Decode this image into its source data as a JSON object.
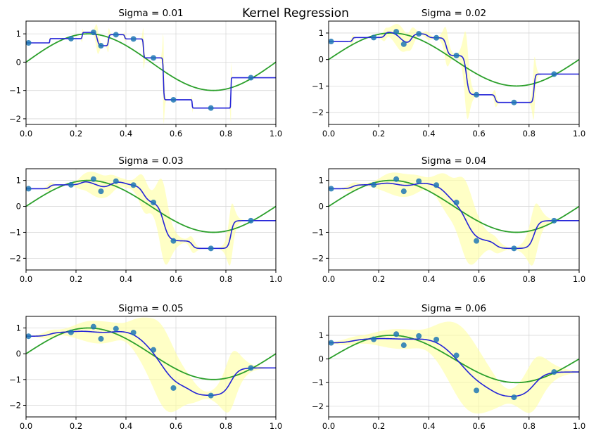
{
  "figure": {
    "suptitle": "Kernel Regression",
    "colors": {
      "true_curve": "#2ca02c",
      "fit_curve": "#2323d8",
      "band": "#ffffa0",
      "points": "#1f77b4"
    },
    "x_ticks": [
      "0.0",
      "0.2",
      "0.4",
      "0.6",
      "0.8",
      "1.0"
    ],
    "y_ticks": [
      "1",
      "0",
      "−1",
      "−2"
    ]
  },
  "chart_data": [
    {
      "type": "line",
      "title": "Sigma = 0.01",
      "sigma": 0.01,
      "xlim": [
        0,
        1
      ],
      "ylim": [
        -2.2,
        1.45
      ],
      "grid": true,
      "points": {
        "x": [
          0.01,
          0.18,
          0.27,
          0.3,
          0.36,
          0.43,
          0.51,
          0.59,
          0.74,
          0.9
        ],
        "y": [
          0.68,
          0.83,
          1.05,
          0.58,
          0.97,
          0.82,
          0.15,
          -1.33,
          -1.62,
          -0.55
        ]
      }
    },
    {
      "type": "line",
      "title": "Sigma = 0.02",
      "sigma": 0.02,
      "xlim": [
        0,
        1
      ],
      "ylim": [
        -2.45,
        1.45
      ],
      "grid": true,
      "points": {
        "x": [
          0.01,
          0.18,
          0.27,
          0.3,
          0.36,
          0.43,
          0.51,
          0.59,
          0.74,
          0.9
        ],
        "y": [
          0.68,
          0.83,
          1.05,
          0.58,
          0.97,
          0.82,
          0.15,
          -1.33,
          -1.62,
          -0.55
        ]
      }
    },
    {
      "type": "line",
      "title": "Sigma = 0.03",
      "sigma": 0.03,
      "xlim": [
        0,
        1
      ],
      "ylim": [
        -2.45,
        1.45
      ],
      "grid": true,
      "points": {
        "x": [
          0.01,
          0.18,
          0.27,
          0.3,
          0.36,
          0.43,
          0.51,
          0.59,
          0.74,
          0.9
        ],
        "y": [
          0.68,
          0.83,
          1.05,
          0.58,
          0.97,
          0.82,
          0.15,
          -1.33,
          -1.62,
          -0.55
        ]
      }
    },
    {
      "type": "line",
      "title": "Sigma = 0.04",
      "sigma": 0.04,
      "xlim": [
        0,
        1
      ],
      "ylim": [
        -2.45,
        1.45
      ],
      "grid": true,
      "points": {
        "x": [
          0.01,
          0.18,
          0.27,
          0.3,
          0.36,
          0.43,
          0.51,
          0.59,
          0.74,
          0.9
        ],
        "y": [
          0.68,
          0.83,
          1.05,
          0.58,
          0.97,
          0.82,
          0.15,
          -1.33,
          -1.62,
          -0.55
        ]
      }
    },
    {
      "type": "line",
      "title": "Sigma = 0.05",
      "sigma": 0.05,
      "xlim": [
        0,
        1
      ],
      "ylim": [
        -2.45,
        1.45
      ],
      "grid": true,
      "points": {
        "x": [
          0.01,
          0.18,
          0.27,
          0.3,
          0.36,
          0.43,
          0.51,
          0.59,
          0.74,
          0.9
        ],
        "y": [
          0.68,
          0.83,
          1.05,
          0.58,
          0.97,
          0.82,
          0.15,
          -1.33,
          -1.62,
          -0.55
        ]
      }
    },
    {
      "type": "line",
      "title": "Sigma = 0.06",
      "sigma": 0.06,
      "xlim": [
        0,
        1
      ],
      "ylim": [
        -2.45,
        1.8
      ],
      "grid": true,
      "points": {
        "x": [
          0.01,
          0.18,
          0.27,
          0.3,
          0.36,
          0.43,
          0.51,
          0.59,
          0.74,
          0.9
        ],
        "y": [
          0.68,
          0.83,
          1.05,
          0.58,
          0.97,
          0.82,
          0.15,
          -1.33,
          -1.62,
          -0.55
        ]
      }
    }
  ]
}
